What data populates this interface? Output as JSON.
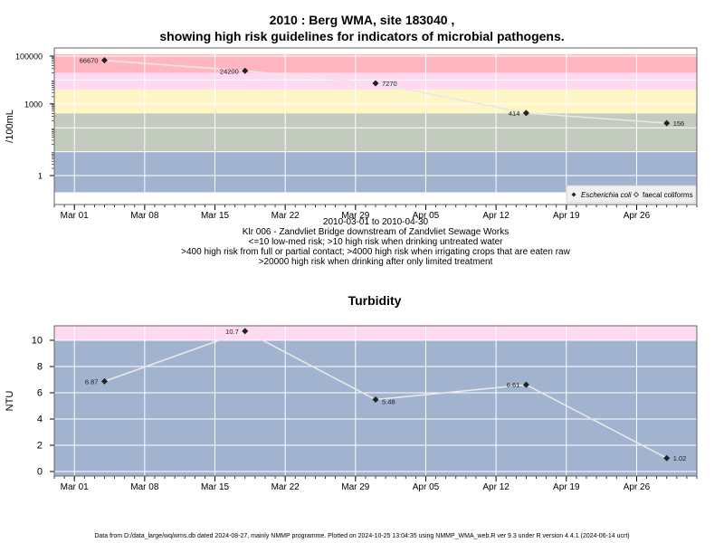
{
  "title_line1": "2010 : Berg WMA, site 183040 ,",
  "title_line2": "showing high risk guidelines for indicators of microbial pathogens.",
  "caption_lines": [
    "2010-03-01 to 2010-04-30",
    "Klr 006 - Zandvliet Bridge downstream of Zandvliet Sewage Works",
    "<=10 low-med risk; >10 high risk when drinking untreated water",
    ">400 high risk from full or partial contact; >4000 high risk when irrigating crops that are eaten raw",
    ">20000 high risk when drinking after only limited treatment"
  ],
  "footer": "Data from D:/data_large/wq/wms.db dated 2024-08-27, mainly NMMP programme. Plotted on 2024-10-25 13:04:35 using NMMP_WMA_web.R ver 9.3 under R version 4.4.1 (2024-06-14 ucrt)",
  "chart_data": [
    {
      "type": "line",
      "ylabel": "/100mL",
      "yscale": "log",
      "yticks": [
        1,
        1000,
        100000
      ],
      "ytick_labels": [
        "1",
        "1000",
        "100000"
      ],
      "xtick_labels": [
        "Mar 01",
        "Mar 08",
        "Mar 15",
        "Mar 22",
        "Mar 29",
        "Apr 05",
        "Apr 12",
        "Apr 19",
        "Apr 26"
      ],
      "xtick_dates": [
        "2010-03-01",
        "2010-03-08",
        "2010-03-15",
        "2010-03-22",
        "2010-03-29",
        "2010-04-05",
        "2010-04-12",
        "2010-04-19",
        "2010-04-26"
      ],
      "xlim": [
        "2010-02-27",
        "2010-05-02"
      ],
      "grid": true,
      "bands": [
        {
          "from": 20000,
          "to": 120000,
          "color": "#ffb6c1"
        },
        {
          "from": 4000,
          "to": 20000,
          "color": "#ffd9f2"
        },
        {
          "from": 400,
          "to": 4000,
          "color": "#fff6c6"
        },
        {
          "from": 10,
          "to": 400,
          "color": "#c3cbbe"
        },
        {
          "from": 0.2,
          "to": 10,
          "color": "#a2b3cf"
        }
      ],
      "series": [
        {
          "name": "Escherichia coli",
          "x": [
            "2010-03-04",
            "2010-03-18",
            "2010-03-31",
            "2010-04-15",
            "2010-04-29"
          ],
          "values": [
            66670,
            24200,
            7270,
            414,
            156
          ],
          "labels": [
            "66670",
            "24200",
            "7270",
            "414",
            "156"
          ]
        }
      ],
      "legend": {
        "placement": "bottom-right",
        "entries": [
          {
            "label": "Escherichia coli",
            "marker": "filled-diamond"
          },
          {
            "label": "faecal coliforms",
            "marker": "open-diamond"
          }
        ]
      }
    },
    {
      "type": "line",
      "title": "Turbidity",
      "ylabel": "NTU",
      "ylim": [
        -0.4,
        11.1
      ],
      "yticks": [
        0,
        2,
        4,
        6,
        8,
        10
      ],
      "ytick_labels": [
        "0",
        "2",
        "4",
        "6",
        "8",
        "10"
      ],
      "xtick_labels": [
        "Mar 01",
        "Mar 08",
        "Mar 15",
        "Mar 22",
        "Mar 29",
        "Apr 05",
        "Apr 12",
        "Apr 19",
        "Apr 26"
      ],
      "xtick_dates": [
        "2010-03-01",
        "2010-03-08",
        "2010-03-15",
        "2010-03-22",
        "2010-03-29",
        "2010-04-05",
        "2010-04-12",
        "2010-04-19",
        "2010-04-26"
      ],
      "xlim": [
        "2010-02-27",
        "2010-05-02"
      ],
      "grid": true,
      "bands": [
        {
          "from": 10,
          "to": 11.1,
          "color": "#ffd9f2"
        },
        {
          "from": -0.4,
          "to": 10,
          "color": "#a2b3cf"
        }
      ],
      "series": [
        {
          "x": [
            "2010-03-04",
            "2010-03-18",
            "2010-03-31",
            "2010-04-15",
            "2010-04-29"
          ],
          "values": [
            6.87,
            10.7,
            5.48,
            6.61,
            1.02
          ],
          "labels": [
            "6.87",
            "10.7",
            "5.48",
            "6.61",
            "1.02"
          ]
        }
      ]
    }
  ],
  "colors": {
    "line": "#e8e8e8",
    "grid": "#ffffff",
    "point": "#222222",
    "frame": "#666666"
  }
}
